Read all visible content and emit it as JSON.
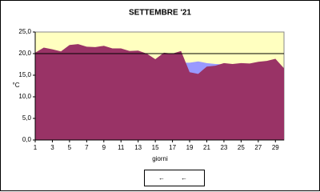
{
  "chart_data": {
    "type": "area",
    "title": "SETTEMBRE  '21",
    "xlabel": "giorni",
    "ylabel": "°C",
    "x": [
      1,
      2,
      3,
      4,
      5,
      6,
      7,
      8,
      9,
      10,
      11,
      12,
      13,
      14,
      15,
      16,
      17,
      18,
      19,
      20,
      21,
      22,
      23,
      24,
      25,
      26,
      27,
      28,
      29,
      30
    ],
    "xlim": [
      1,
      30
    ],
    "xticks": [
      1,
      3,
      5,
      7,
      9,
      11,
      13,
      15,
      17,
      19,
      21,
      23,
      25,
      27,
      29
    ],
    "ylim": [
      0,
      25
    ],
    "yticks": [
      {
        "value": 0,
        "label": "0,0"
      },
      {
        "value": 5,
        "label": "5,0"
      },
      {
        "value": 10,
        "label": "10,0"
      },
      {
        "value": 15,
        "label": "15,0"
      },
      {
        "value": 20,
        "label": "20,0"
      },
      {
        "value": 25,
        "label": "25,0"
      }
    ],
    "reference_line": 20,
    "plot_background": "#ffffc0",
    "series": [
      {
        "color": "#9999ff",
        "values": [
          19.6,
          19.5,
          19.4,
          19.3,
          19.2,
          19.1,
          19.0,
          18.9,
          18.8,
          18.7,
          18.6,
          18.5,
          18.4,
          18.3,
          18.2,
          18.1,
          18.0,
          17.9,
          17.9,
          18.2,
          17.8,
          17.6,
          17.5,
          17.4,
          17.3,
          17.2,
          17.1,
          17.0,
          16.9,
          16.5
        ]
      },
      {
        "color": "#993366",
        "values": [
          20.2,
          21.4,
          21.0,
          20.5,
          22.0,
          22.2,
          21.6,
          21.5,
          21.8,
          21.2,
          21.2,
          20.6,
          20.7,
          20.0,
          18.7,
          20.2,
          20.0,
          20.6,
          15.7,
          15.3,
          17.0,
          17.2,
          17.8,
          17.6,
          17.8,
          17.7,
          18.1,
          18.3,
          18.8,
          16.6
        ]
      }
    ]
  }
}
